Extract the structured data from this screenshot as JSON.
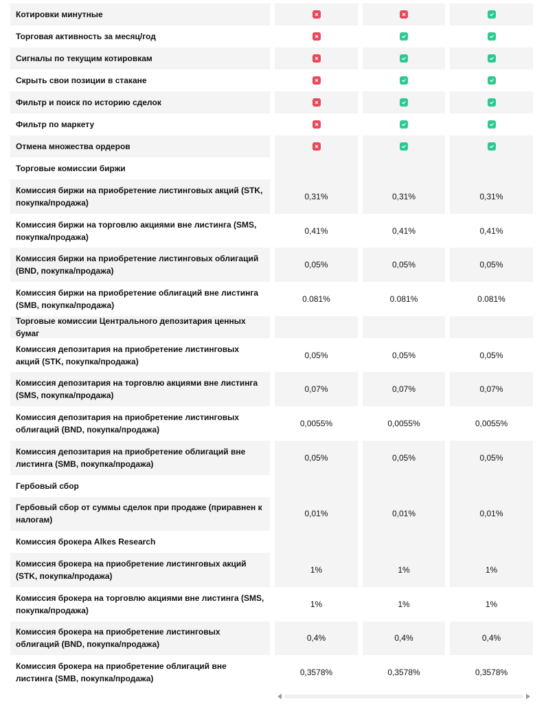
{
  "table": {
    "rows": [
      {
        "label": "Котировки минутные"
      },
      {
        "label": "Торговая активность за месяц/год"
      },
      {
        "label": "Сигналы по текущим котировкам"
      },
      {
        "label": "Скрыть свои позиции в стакане"
      },
      {
        "label": "Фильтр и поиск по историю сделок"
      },
      {
        "label": "Фильтр по маркету"
      },
      {
        "label": "Отмена множества ордеров"
      },
      {
        "label": "Торговые комиссии биржи"
      },
      {
        "label": "Комиссия биржи на приобретение листинговых акций (STK, покупка/продажа)",
        "values": [
          "0,31%",
          "0,31%",
          "0,31%"
        ]
      },
      {
        "label": "Комиссия биржи на торговлю акциями вне листинга (SMS, покупка/продажа)",
        "values": [
          "0,41%",
          "0,41%",
          "0,41%"
        ]
      },
      {
        "label": "Комиссия биржи на приобретение листинговых облигаций (BND, покупка/продажа)",
        "values": [
          "0,05%",
          "0,05%",
          "0,05%"
        ]
      },
      {
        "label": "Комиссия биржи на приобретение облигаций вне листинга (SMB, покупка/продажа)",
        "values": [
          "0.081%",
          "0.081%",
          "0.081%"
        ]
      },
      {
        "label": "Торговые комиссии Центрального депозитария ценных бумаг"
      },
      {
        "label": "Комиссия депозитария на приобретение листинговых акций (STK, покупка/продажа)",
        "values": [
          "0,05%",
          "0,05%",
          "0,05%"
        ]
      },
      {
        "label": "Комиссия депозитария на торговлю акциями вне листинга (SMS, покупка/продажа)",
        "values": [
          "0,07%",
          "0,07%",
          "0,07%"
        ]
      },
      {
        "label": "Комиссия депозитария на приобретение листинговых облигаций (BND, покупка/продажа)",
        "values": [
          "0,0055%",
          "0,0055%",
          "0,0055%"
        ]
      },
      {
        "label": "Комиссия депозитария на приобретение облигаций вне листинга (SMB, покупка/продажа)",
        "values": [
          "0,05%",
          "0,05%",
          "0,05%"
        ]
      },
      {
        "label": "Гербовый сбор"
      },
      {
        "label": "Гербовый сбор от суммы сделок при продаже (приравнен к налогам)",
        "values": [
          "0,01%",
          "0,01%",
          "0,01%"
        ]
      },
      {
        "label": "Комиссия брокера Alkes Research"
      },
      {
        "label": "Комиссия брокера на приобретение листинговых акций (STK, покупка/продажа)",
        "values": [
          "1%",
          "1%",
          "1%"
        ]
      },
      {
        "label": "Комиссия брокера на торговлю акциями вне листинга (SMS, покупка/продажа)",
        "values": [
          "1%",
          "1%",
          "1%"
        ]
      },
      {
        "label": "Комиссия брокера на приобретение листинговых облигаций (BND, покупка/продажа)",
        "values": [
          "0,4%",
          "0,4%",
          "0,4%"
        ]
      },
      {
        "label": "Комиссия брокера на приобретение облигаций вне листинга (SMB, покупка/продажа)",
        "values": [
          "0,3578%",
          "0,3578%",
          "0,3578%"
        ]
      }
    ]
  }
}
